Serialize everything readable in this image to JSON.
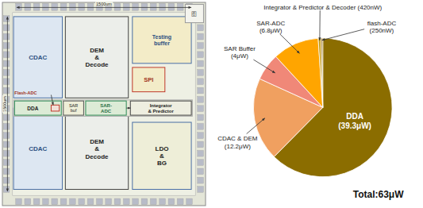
{
  "chart_data": [
    {
      "type": "pie",
      "values": [
        39.3,
        12.2,
        4.0,
        6.8,
        0.42,
        0.25
      ],
      "value_labels": [
        "DDA\n(39.3μW)",
        "CDAC & DEM\n(12.2μW)",
        "SAR Buffer\n(4μW)",
        "SAR-ADC\n(6.8μW)",
        "Integrator & Predictor & Decoder (420nW)",
        "flash-ADC\n(250nW)"
      ],
      "colors": [
        "#8B6D00",
        "#F0A060",
        "#F08878",
        "#FFA500",
        "#C8A020",
        "#A07820"
      ],
      "annotations": [
        "Total:63μW"
      ]
    },
    {
      "type": "diagram",
      "annotations": [
        "CDAC",
        "CDAC",
        "DEM\n&\nDecode",
        "DEM\n&\nDecode",
        "Testing\nbuffer",
        "SPI",
        "LDO\n&\nBG",
        "DDA",
        "Flash-ADC",
        "SAR\nbuf",
        "SAR-\nADC",
        "Integrator\n& Predictor",
        "图",
        "1500um",
        "1500um"
      ]
    }
  ]
}
